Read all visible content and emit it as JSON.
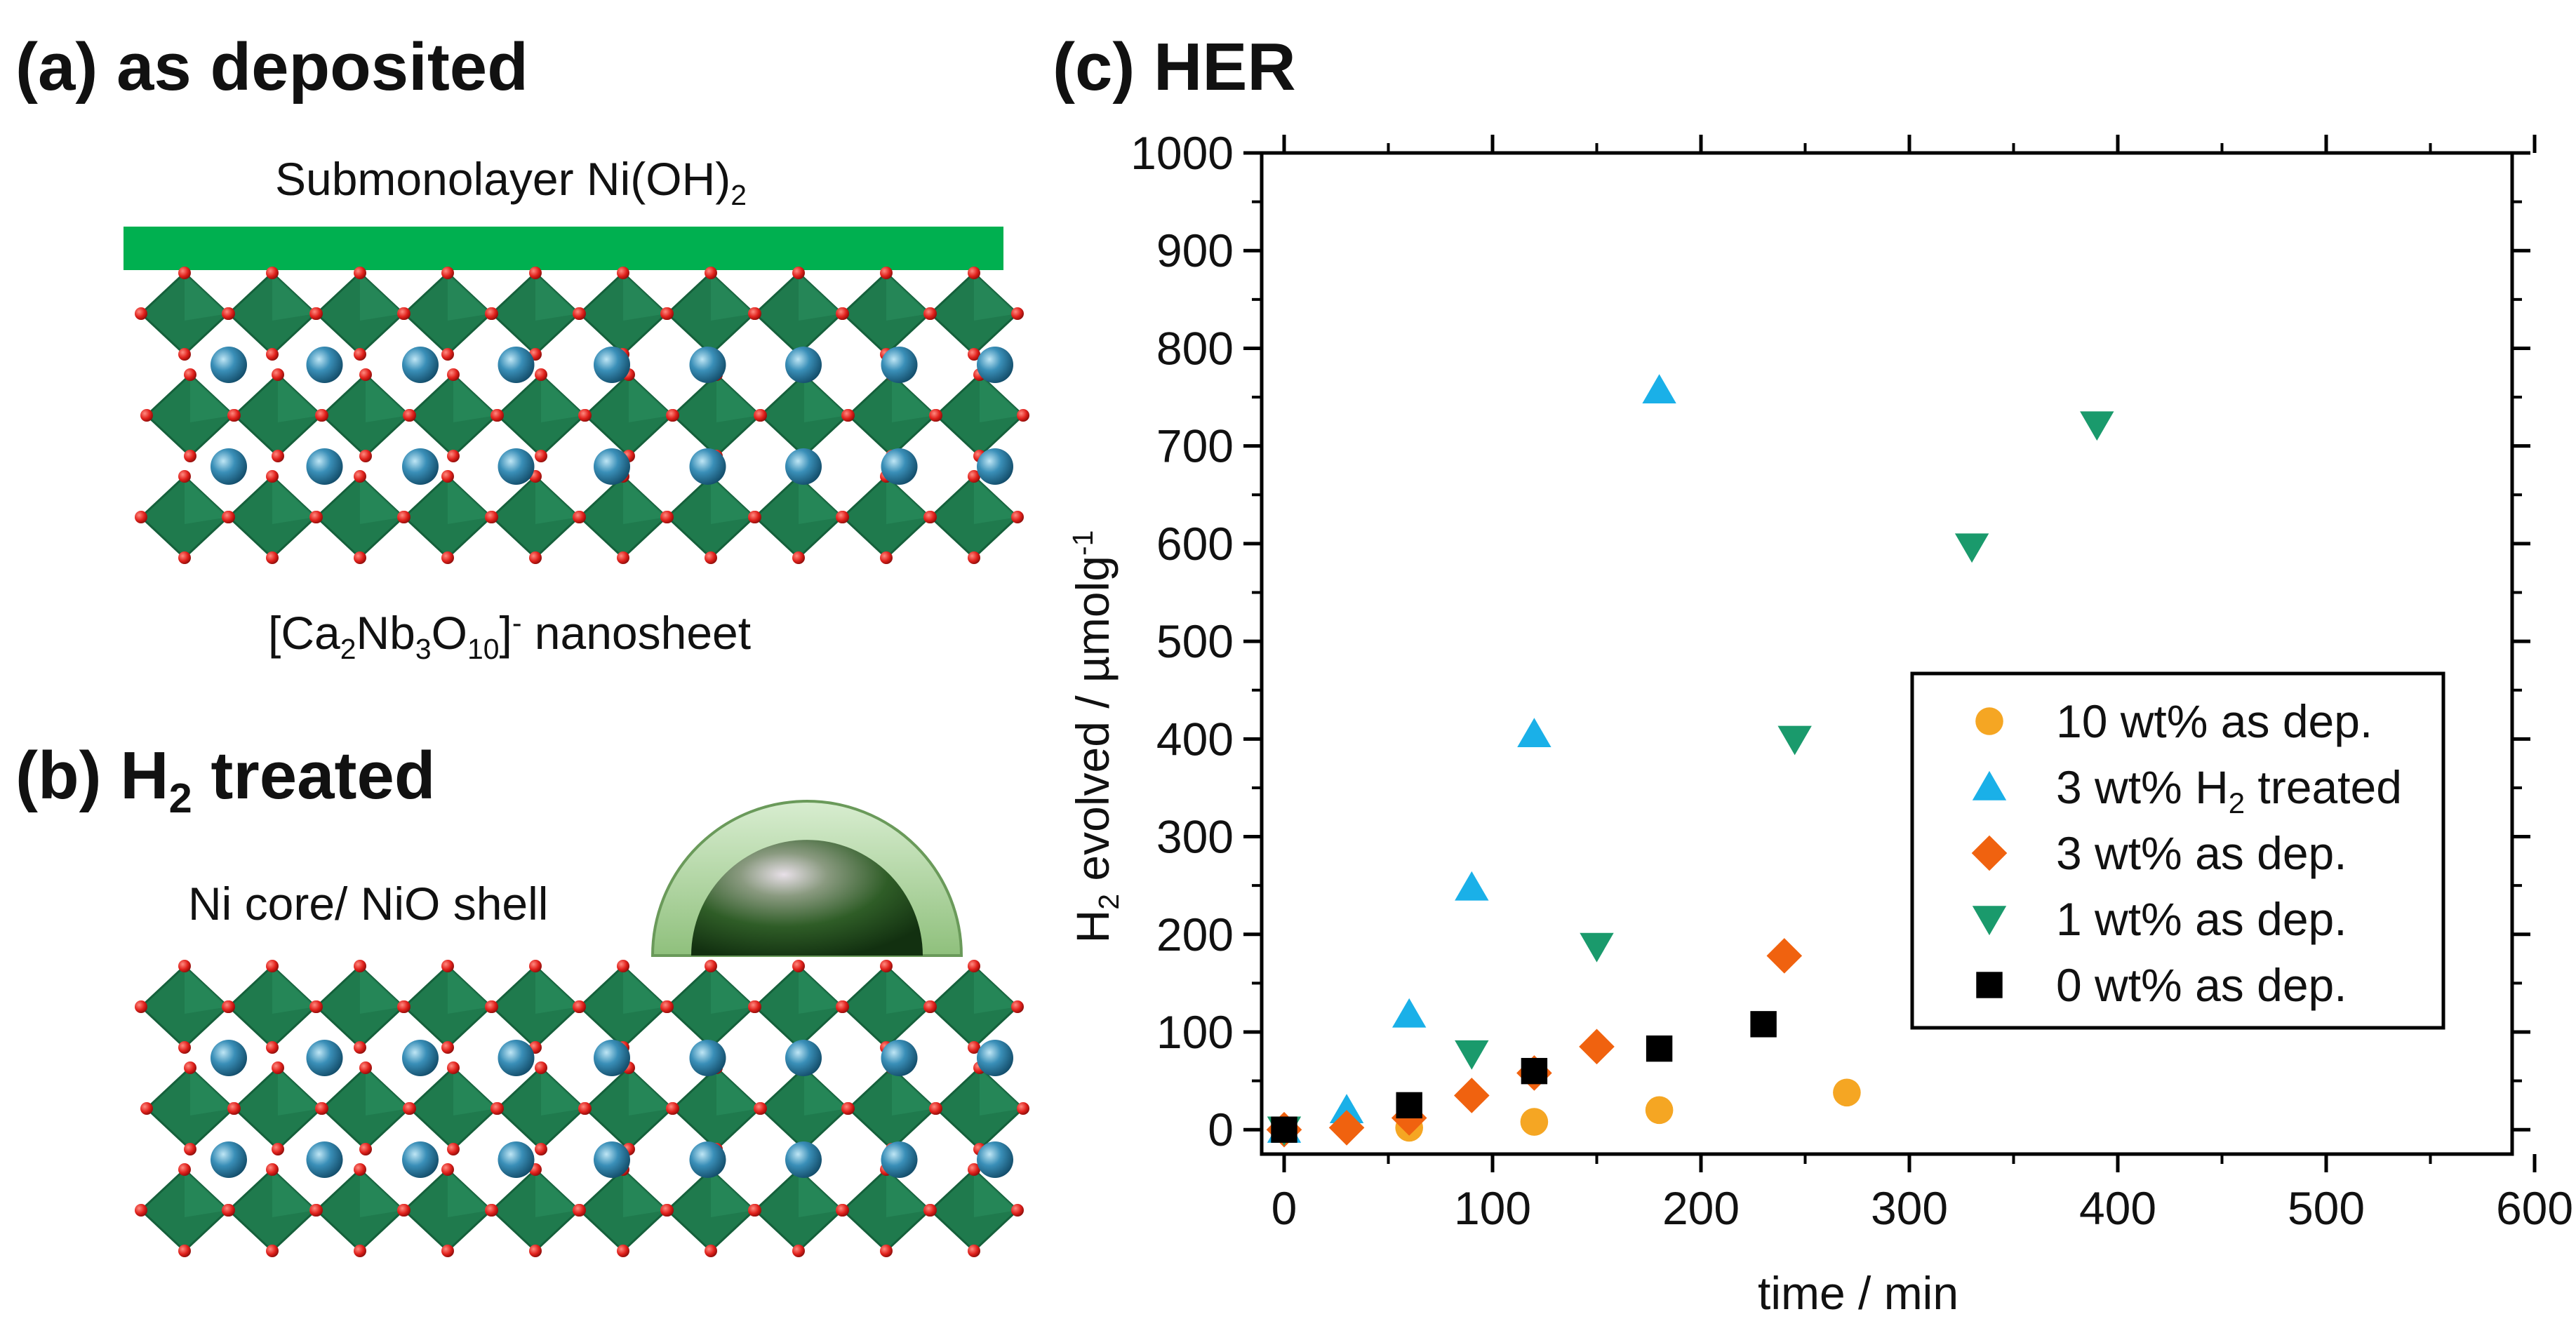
{
  "panels": {
    "a": {
      "title": "(a) as deposited",
      "layer_label": "Submonolayer Ni(OH)",
      "layer_label_sub": "2",
      "nanosheet_pre": "[Ca",
      "nanosheet_s1": "2",
      "nanosheet_mid1": "Nb",
      "nanosheet_s2": "3",
      "nanosheet_mid2": "O",
      "nanosheet_s3": "10",
      "nanosheet_close": "]",
      "nanosheet_sup": "-",
      "nanosheet_post": " nanosheet"
    },
    "b": {
      "title_pre": "(b) H",
      "title_sub": "2",
      "title_post": " treated",
      "particle_label": "Ni core/ NiO shell"
    },
    "c": {
      "title": "(c) HER"
    }
  },
  "colors": {
    "octahedra": "#1f7a4d",
    "octahedra_dark": "#15603b",
    "oxygen": "#e0201b",
    "ca_atom": "#2a7fa8",
    "layer_bar": "#00b050",
    "shell_outer": "#a8d49a",
    "core_dark": "#1e4d1a"
  },
  "chart_data": {
    "type": "scatter",
    "title": "(c) HER",
    "xlabel": "time / min",
    "ylabel_pre": "H",
    "ylabel_sub": "2",
    "ylabel_mid": " evolved / µmolg",
    "ylabel_sup": "-1",
    "xlim": [
      0,
      600
    ],
    "ylim": [
      -25,
      1000
    ],
    "x_ticks": [
      0,
      100,
      200,
      300,
      400,
      500,
      600
    ],
    "y_ticks": [
      0,
      100,
      200,
      300,
      400,
      500,
      600,
      700,
      800,
      900,
      1000
    ],
    "grid": false,
    "legend_position": "right-middle",
    "series": [
      {
        "name": "10 wt% as dep.",
        "color": "#f5a623",
        "marker": "circle",
        "x": [
          0,
          60,
          120,
          180,
          270
        ],
        "y": [
          0,
          2,
          8,
          20,
          38
        ]
      },
      {
        "name": "3 wt% H",
        "name_sub": "2",
        "name_post": " treated",
        "color": "#1ab0e8",
        "marker": "triangle-up",
        "x": [
          0,
          30,
          60,
          90,
          120,
          180
        ],
        "y": [
          0,
          20,
          118,
          248,
          405,
          757
        ]
      },
      {
        "name": "3 wt% as dep.",
        "color": "#f0620f",
        "marker": "diamond",
        "x": [
          0,
          30,
          60,
          90,
          120,
          150,
          240
        ],
        "y": [
          0,
          2,
          12,
          35,
          58,
          85,
          178
        ]
      },
      {
        "name": "1 wt% as dep.",
        "color": "#1a9a6c",
        "marker": "triangle-down",
        "x": [
          0,
          90,
          150,
          245,
          330,
          390
        ],
        "y": [
          0,
          78,
          188,
          400,
          597,
          722
        ]
      },
      {
        "name": "0 wt% as dep.",
        "color": "#000000",
        "marker": "square",
        "x": [
          0,
          60,
          120,
          180,
          230
        ],
        "y": [
          0,
          25,
          60,
          83,
          108
        ]
      }
    ]
  }
}
